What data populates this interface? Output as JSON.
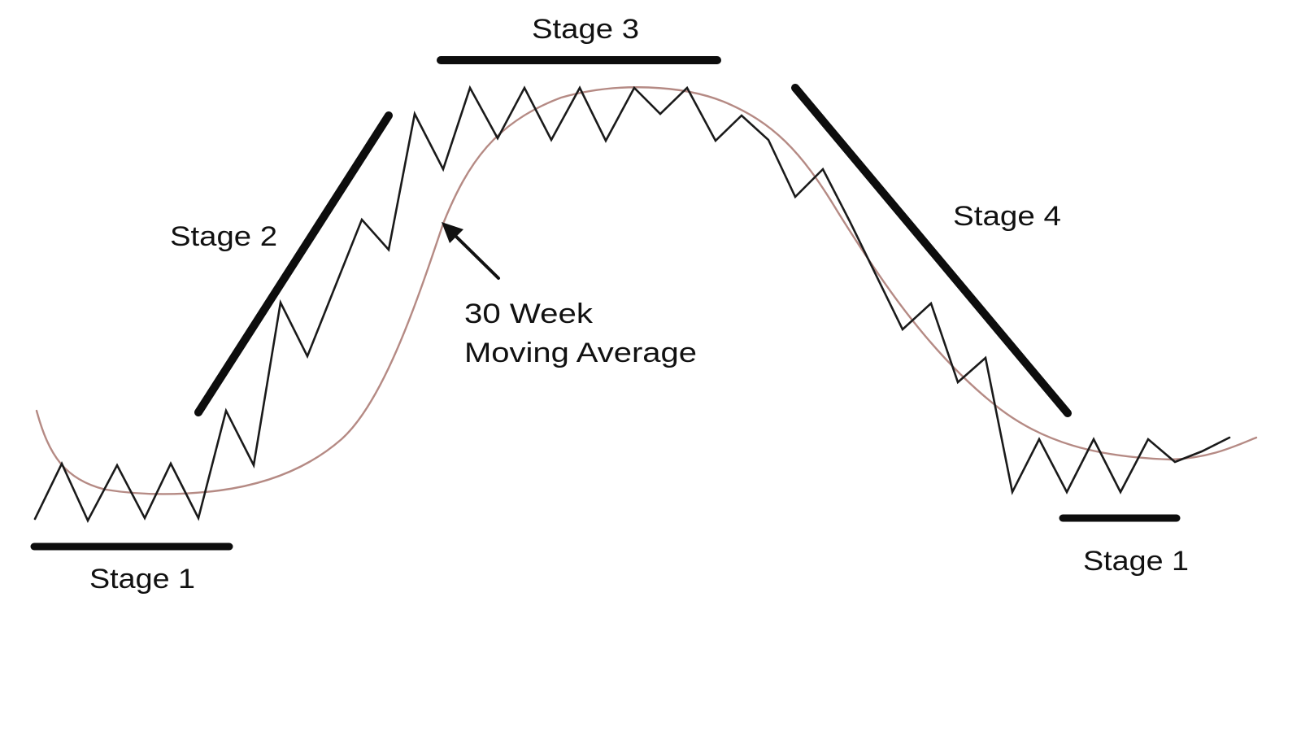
{
  "labels": {
    "stage1_left": "Stage 1",
    "stage2": "Stage 2",
    "stage3": "Stage 3",
    "stage4": "Stage 4",
    "stage1_right": "Stage 1",
    "ma_line1": "30 Week",
    "ma_line2": "Moving Average"
  },
  "colors": {
    "price_line": "#1a1a1a",
    "moving_average": "#b58a84",
    "stage_bars": "#0d0d0d",
    "text": "#111111"
  }
}
